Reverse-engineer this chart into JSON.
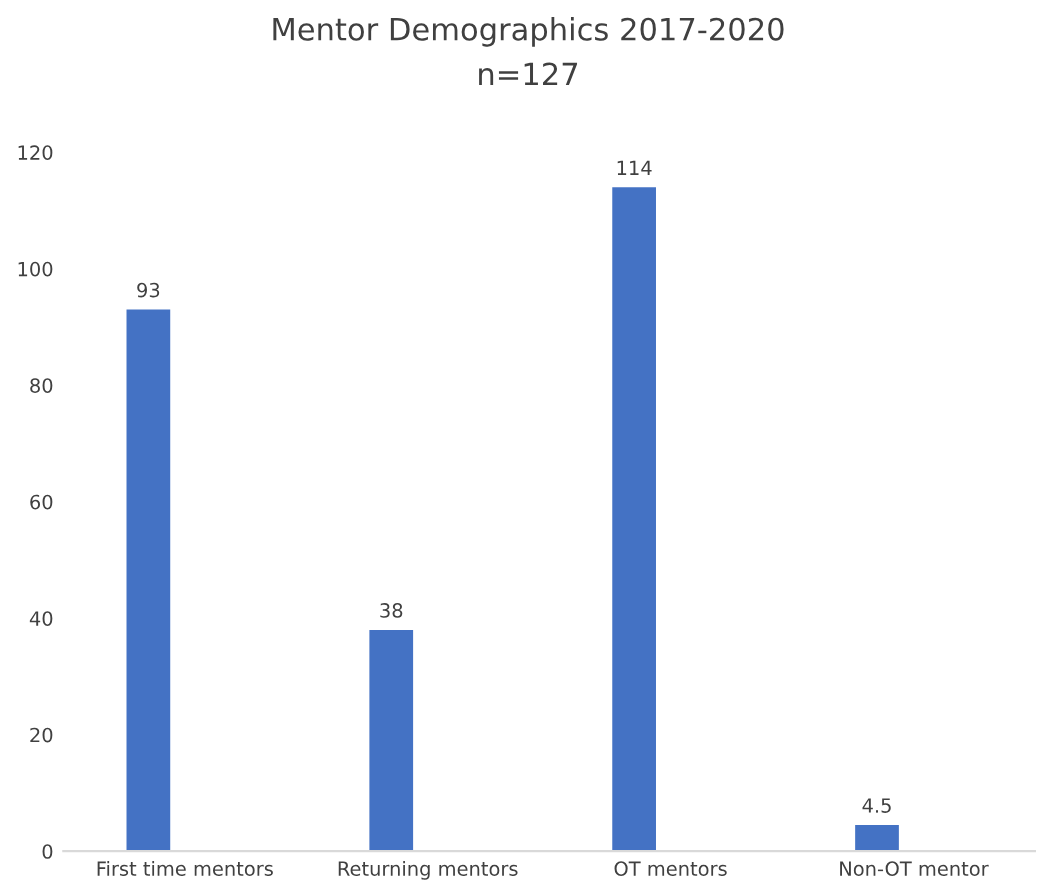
{
  "chart_data": {
    "type": "bar",
    "title": "Mentor Demographics 2017-2020",
    "subtitle": "n=127",
    "categories": [
      "First time mentors",
      "Returning mentors",
      "OT mentors",
      "Non-OT mentor"
    ],
    "values": [
      93,
      38,
      114,
      4.5
    ],
    "color": "#4472c4",
    "ylim": [
      0,
      120
    ],
    "yticks": [
      0,
      20,
      40,
      60,
      80,
      100,
      120
    ],
    "grid": false,
    "data_labels": true
  }
}
